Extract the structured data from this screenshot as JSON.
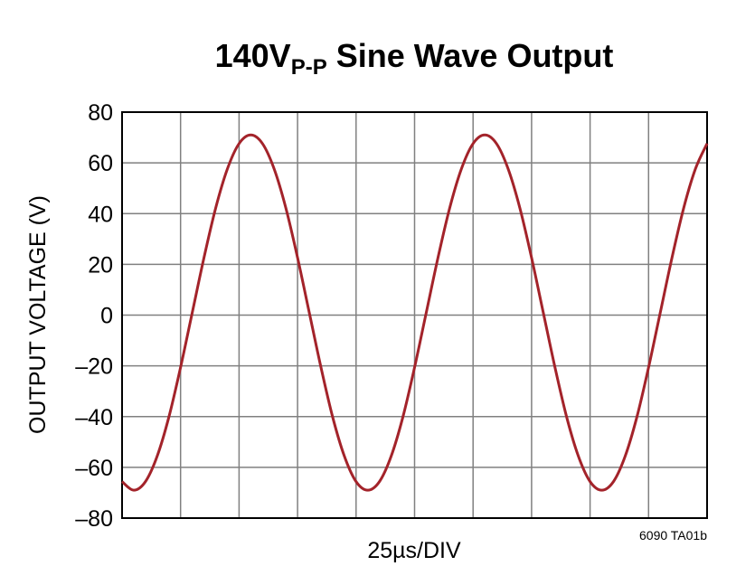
{
  "chart_data": {
    "type": "line",
    "title": {
      "main": "140V",
      "subscript": "P-P",
      "rest": " Sine Wave Output"
    },
    "x_label": "25µs/DIV",
    "y_label": "OUTPUT VOLTAGE (V)",
    "annotation": "6090 TA01b",
    "xlim": [
      0,
      250
    ],
    "xticks": [
      0,
      25,
      50,
      75,
      100,
      125,
      150,
      175,
      200,
      225,
      250
    ],
    "ylim": [
      -80,
      80
    ],
    "yticks": [
      {
        "value": -80,
        "label": "–80"
      },
      {
        "value": -60,
        "label": "–60"
      },
      {
        "value": -40,
        "label": "–40"
      },
      {
        "value": -20,
        "label": "–20"
      },
      0,
      20,
      40,
      60,
      80
    ],
    "grid": true,
    "x": [
      0,
      5,
      10,
      15,
      20,
      25,
      30,
      35,
      40,
      45,
      50,
      55,
      60,
      65,
      70,
      75,
      80,
      85,
      90,
      95,
      100,
      105,
      110,
      115,
      120,
      125,
      130,
      135,
      140,
      145,
      150,
      155,
      160,
      165,
      170,
      175,
      180,
      185,
      190,
      195,
      200,
      205,
      210,
      215,
      220,
      225,
      230,
      235,
      240,
      245,
      250
    ],
    "series": [
      {
        "color": "#a3232a",
        "values": [
          -65.6,
          -69,
          -65.6,
          -55.6,
          -40.2,
          -20.6,
          1,
          22.6,
          42.2,
          57.6,
          67.6,
          71,
          67.6,
          57.6,
          42.2,
          22.6,
          1,
          -20.6,
          -40.2,
          -55.6,
          -65.6,
          -69,
          -65.6,
          -55.6,
          -40.2,
          -20.6,
          1,
          22.6,
          42.2,
          57.6,
          67.6,
          71,
          67.6,
          57.6,
          42.2,
          22.6,
          1,
          -20.6,
          -40.2,
          -55.6,
          -65.6,
          -69,
          -65.6,
          -55.6,
          -40.2,
          -20.6,
          1,
          22.6,
          42.2,
          57.6,
          67.6
        ]
      }
    ]
  }
}
